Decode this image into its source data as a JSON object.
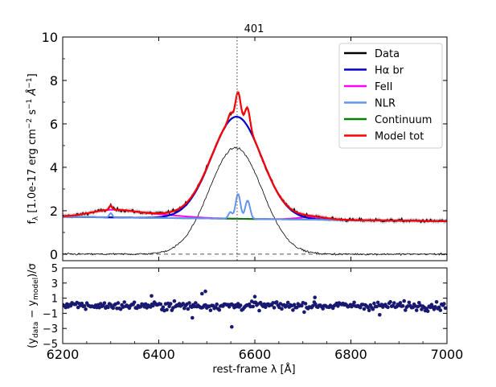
{
  "chart_data": [
    {
      "type": "line",
      "panel": "top",
      "title": "401",
      "xlabel": "",
      "ylabel": "f_λ [1.0e-17 erg cm⁻² s⁻¹ Å⁻¹]",
      "ylabel_parts": {
        "main": "f",
        "sub": "λ",
        "rest": " [1.0e-17 erg cm",
        "sup1": "−2",
        "mid": " s",
        "sup2": "−1",
        "unit": " Å",
        "sup3": "−1",
        "close": "]"
      },
      "xlim": [
        6200,
        7000
      ],
      "ylim": [
        -0.3,
        10
      ],
      "yticks": [
        0,
        2,
        4,
        6,
        8,
        10
      ],
      "vline_x": 6563,
      "hline_y": 0,
      "legend_position": "top-right",
      "series": [
        {
          "name": "Data",
          "color": "#000000"
        },
        {
          "name": "Hα br",
          "color": "#0000cc"
        },
        {
          "name": "FeII",
          "color": "#ff00ff"
        },
        {
          "name": "NLR",
          "color": "#6495ed"
        },
        {
          "name": "Continuum",
          "color": "#008000"
        },
        {
          "name": "Model tot",
          "color": "#ff0000"
        }
      ],
      "component_params": {
        "continuum": {
          "at_6200": 1.72,
          "at_7000": 1.52
        },
        "halpha_broad": {
          "center": 6562,
          "amplitude": 4.7,
          "sigma": 52
        },
        "feii": [
          {
            "center": 6300,
            "amplitude": 0.3,
            "sigma": 45
          },
          {
            "center": 6390,
            "amplitude": 0.15,
            "sigma": 60
          },
          {
            "center": 6720,
            "amplitude": 0.12,
            "sigma": 30
          }
        ],
        "nlr": [
          {
            "center": 6565,
            "amplitude": 1.15,
            "sigma": 5
          },
          {
            "center": 6585,
            "amplitude": 0.85,
            "sigma": 5
          },
          {
            "center": 6549,
            "amplitude": 0.3,
            "sigma": 4
          },
          {
            "center": 6300,
            "amplitude": 0.2,
            "sigma": 3
          }
        ],
        "extra_thin_profile": {
          "center": 6560,
          "amplitude": 4.9,
          "sigma": 55
        }
      }
    },
    {
      "type": "scatter",
      "panel": "bottom",
      "xlabel": "rest-frame λ [Å]",
      "ylabel": "(y_data − y_model)/σ",
      "ylabel_parts": {
        "open": "(y",
        "sub1": "data",
        "mid": " − y",
        "sub2": "model",
        "close": ")/σ"
      },
      "xlim": [
        6200,
        7000
      ],
      "ylim": [
        -5,
        5
      ],
      "xticks": [
        6200,
        6400,
        6600,
        6800,
        7000
      ],
      "yticks": [
        "5",
        "3",
        "1",
        "−1",
        "−3",
        "−5"
      ],
      "marker_color": "#191970",
      "residual_spread": 0.5,
      "outliers": [
        {
          "x": 6490,
          "y": 1.6
        },
        {
          "x": 6497,
          "y": 1.9
        },
        {
          "x": 6385,
          "y": 1.3
        },
        {
          "x": 6552,
          "y": -2.8
        },
        {
          "x": 6470,
          "y": -1.6
        },
        {
          "x": 6600,
          "y": 1.2
        },
        {
          "x": 6725,
          "y": 1.1
        },
        {
          "x": 6860,
          "y": -1.2
        }
      ]
    }
  ]
}
